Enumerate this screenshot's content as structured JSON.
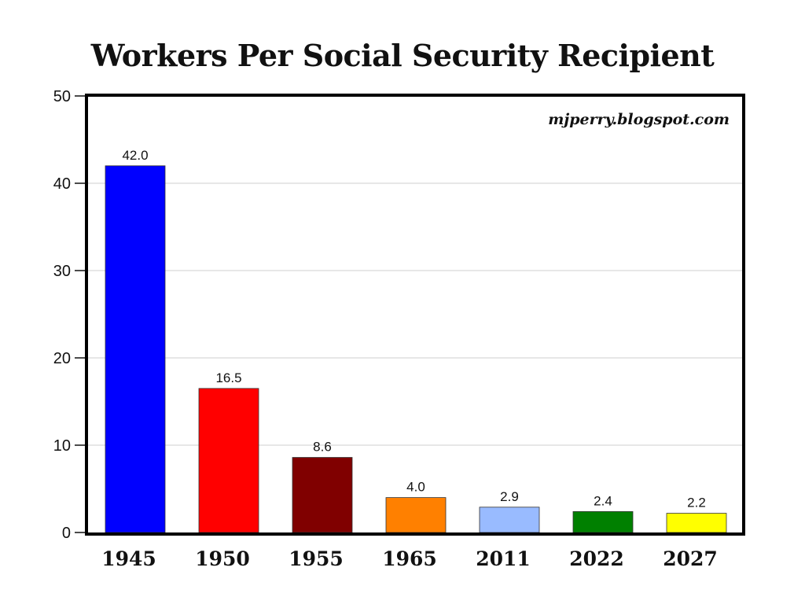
{
  "chart_data": {
    "type": "bar",
    "title": "Workers Per Social Security Recipient",
    "watermark": "mjperry.blogspot.com",
    "categories": [
      "1945",
      "1950",
      "1955",
      "1965",
      "2011",
      "2022",
      "2027"
    ],
    "values": [
      42.0,
      16.5,
      8.6,
      4.0,
      2.9,
      2.4,
      2.2
    ],
    "data_labels": [
      "42.0",
      "16.5",
      "8.6",
      "4.0",
      "2.9",
      "2.4",
      "2.2"
    ],
    "colors": [
      "#0000ff",
      "#ff0000",
      "#800000",
      "#ff8000",
      "#99bbff",
      "#008000",
      "#ffff00"
    ],
    "xlabel": "",
    "ylabel": "",
    "ylim": [
      0,
      50
    ],
    "yticks": [
      0,
      10,
      20,
      30,
      40,
      50
    ],
    "grid": true,
    "legend": "none"
  }
}
